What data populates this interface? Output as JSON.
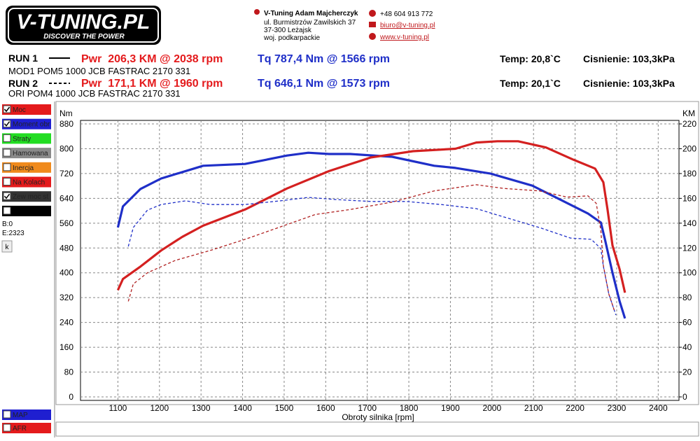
{
  "header": {
    "logo": "V-TUNING.PL",
    "slogan": "DISCOVER THE POWER",
    "company": "V-Tuning Adam Majcherczyk",
    "address": [
      "ul. Burmistrzów Zawilskich 37",
      "37-300 Leżajsk",
      "woj. podkarpackie"
    ],
    "phone": "+48 604 913 772",
    "email": "biuro@v-tuning.pl",
    "web": "www.v-tuning.pl"
  },
  "runs": [
    {
      "label": "RUN 1",
      "power": "Pwr  206,3 KM @ 2038 rpm",
      "torque": "Tq 787,4 Nm @ 1566 rpm",
      "temp": "Temp: 20,8`C",
      "pressure": "Cisnienie: 103,3kPa",
      "description": "MOD1 POM5 1000 JCB FASTRAC 2170 331"
    },
    {
      "label": "RUN 2",
      "power": "Pwr  171,1 KM @ 1960 rpm",
      "torque": "Tq 646,1 Nm @ 1573 rpm",
      "temp": "Temp: 20,1`C",
      "pressure": "Cisnienie: 103,3kPa",
      "description": "ORI POM4 1000 JCB FASTRAC 2170 331"
    }
  ],
  "panel": {
    "items": [
      {
        "label": "Moc",
        "color": "#e41a1c",
        "checked": true
      },
      {
        "label": "Moment obr",
        "color": "#1f1fd0",
        "checked": true
      },
      {
        "label": "Straty",
        "color": "#22dd22",
        "checked": false
      },
      {
        "label": "Hamowana",
        "color": "#8a8a8a",
        "checked": false
      },
      {
        "label": "Inercja",
        "color": "#f08a1c",
        "checked": false
      },
      {
        "label": "Na Kolach",
        "color": "#e41a1c",
        "checked": false
      },
      {
        "label": "Zew moc st",
        "color": "#333333",
        "checked": true
      },
      {
        "label": null,
        "color": "#000000",
        "checked": false
      }
    ],
    "begin": "B:0",
    "end": "E:2323",
    "button": "k",
    "bottom_items": [
      {
        "label": "MAP",
        "color": "#1f1fd0"
      },
      {
        "label": "AFR",
        "color": "#e41a1c"
      }
    ]
  },
  "chart_data": {
    "type": "line",
    "xlabel": "Obroty silnika [rpm]",
    "ylabel": "Nm",
    "y2label": "KM",
    "xlim": [
      1010,
      2450
    ],
    "xticks": [
      1100,
      1200,
      1300,
      1400,
      1500,
      1600,
      1700,
      1800,
      1900,
      2000,
      2100,
      2200,
      2300,
      2400
    ],
    "ylim": [
      0,
      880
    ],
    "yticks": [
      0,
      80,
      160,
      240,
      320,
      400,
      480,
      560,
      640,
      720,
      800,
      880
    ],
    "y2lim": [
      0,
      220
    ],
    "y2ticks": [
      0,
      20,
      40,
      60,
      80,
      100,
      120,
      140,
      160,
      180,
      200,
      220
    ],
    "grid": true,
    "series": [
      {
        "color": "#1f2fc8",
        "dashed": false,
        "axis": "y",
        "x": [
          1100,
          1112,
          1154,
          1204,
          1305,
          1406,
          1507,
          1558,
          1608,
          1659,
          1760,
          1861,
          1912,
          1996,
          2097,
          2164,
          2231,
          2262,
          2273,
          2290,
          2307,
          2320
        ],
        "values": [
          546,
          614,
          670,
          704,
          745,
          751,
          778,
          787,
          783,
          783,
          774,
          745,
          738,
          720,
          681,
          636,
          591,
          562,
          501,
          400,
          309,
          253
        ]
      },
      {
        "color": "#d42020",
        "dashed": false,
        "axis": "y2",
        "x": [
          1100,
          1112,
          1154,
          1204,
          1255,
          1305,
          1406,
          1507,
          1608,
          1709,
          1810,
          1912,
          1962,
          2013,
          2063,
          2130,
          2197,
          2248,
          2268,
          2278,
          2290,
          2307,
          2320
        ],
        "values": [
          86,
          95,
          105,
          118,
          129,
          138,
          151,
          168,
          182,
          193,
          198,
          200,
          205,
          206,
          206,
          201,
          191,
          184,
          173,
          151,
          122,
          103,
          84
        ]
      },
      {
        "color": "#1f2fc8",
        "dashed": true,
        "axis": "y",
        "x": [
          1125,
          1137,
          1171,
          1204,
          1263,
          1322,
          1406,
          1491,
          1558,
          1625,
          1709,
          1794,
          1878,
          1962,
          2029,
          2114,
          2189,
          2239,
          2262,
          2268,
          2281,
          2298
        ],
        "values": [
          485,
          546,
          602,
          620,
          632,
          620,
          620,
          632,
          643,
          636,
          630,
          630,
          620,
          607,
          580,
          546,
          512,
          508,
          478,
          422,
          332,
          264
        ]
      },
      {
        "color": "#b02020",
        "dashed": true,
        "axis": "y2",
        "x": [
          1125,
          1137,
          1171,
          1238,
          1322,
          1406,
          1491,
          1575,
          1659,
          1760,
          1861,
          1962,
          2029,
          2114,
          2181,
          2231,
          2251,
          2262,
          2268,
          2281,
          2295
        ],
        "values": [
          77,
          91,
          100,
          110,
          118,
          127,
          137,
          147,
          151,
          157,
          166,
          171,
          168,
          166,
          161,
          162,
          156,
          134,
          106,
          83,
          69
        ]
      }
    ]
  }
}
